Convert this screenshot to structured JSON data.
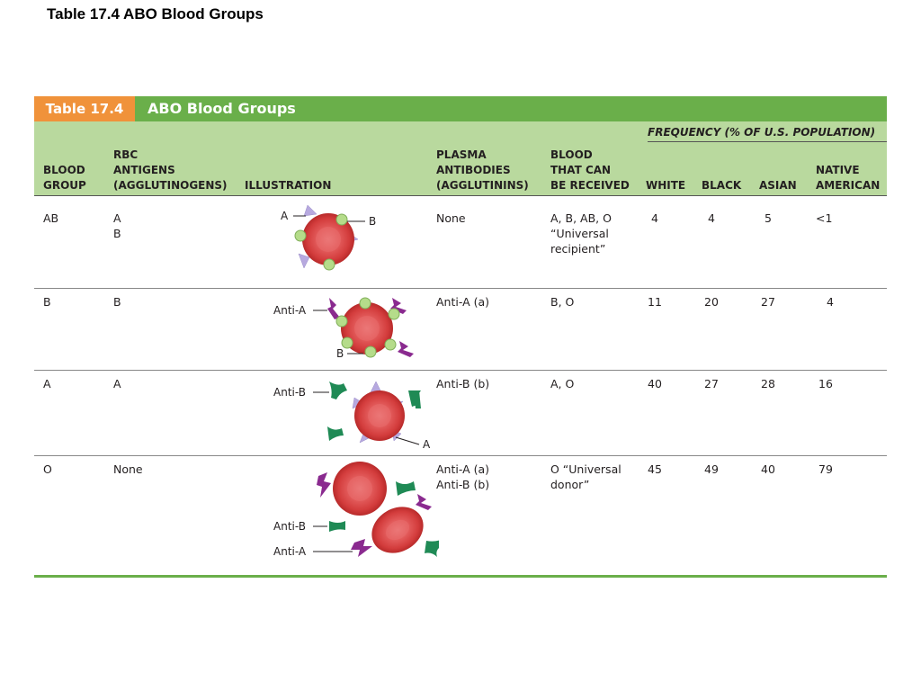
{
  "slide_title": "Table 17.4  ABO Blood Groups",
  "table": {
    "tag": "Table 17.4",
    "title": "ABO Blood Groups",
    "frequency_heading": "FREQUENCY (% OF U.S. POPULATION)",
    "headers": {
      "blood_group": "BLOOD\nGROUP",
      "rbc_antigens": "RBC\nANTIGENS\n(AGGLUTINOGENS)",
      "illustration": "ILLUSTRATION",
      "plasma_antibodies": "PLASMA\nANTIBODIES\n(AGGLUTININS)",
      "blood_received": "BLOOD\nTHAT CAN\nBE RECEIVED",
      "white": "WHITE",
      "black": "BLACK",
      "asian": "ASIAN",
      "native_american": "NATIVE\nAMERICAN"
    },
    "rows": [
      {
        "blood_group": "AB",
        "antigens": "A\nB",
        "antibodies": "None",
        "received": "A, B, AB, O\n“Universal\nrecipient”",
        "white": "4",
        "black": "4",
        "asian": "5",
        "native_american": "<1",
        "labels": {
          "a": "A",
          "b": "B"
        }
      },
      {
        "blood_group": "B",
        "antigens": "B",
        "antibodies": "Anti-A (a)",
        "received": "B, O",
        "white": "11",
        "black": "20",
        "asian": "27",
        "native_american": "4",
        "labels": {
          "anti_a": "Anti-A",
          "b": "B"
        }
      },
      {
        "blood_group": "A",
        "antigens": "A",
        "antibodies": "Anti-B (b)",
        "received": "A, O",
        "white": "40",
        "black": "27",
        "asian": "28",
        "native_american": "16",
        "labels": {
          "anti_b": "Anti-B",
          "a": "A"
        }
      },
      {
        "blood_group": "O",
        "antigens": "None",
        "antibodies": "Anti-A (a)\nAnti-B (b)",
        "received": "O “Universal\ndonor”",
        "white": "45",
        "black": "49",
        "asian": "40",
        "native_american": "79",
        "labels": {
          "anti_b": "Anti-B",
          "anti_a": "Anti-A"
        }
      }
    ]
  },
  "colors": {
    "title_green": "#6aaf4a",
    "header_green": "#b9d99e",
    "tag_orange": "#f0923a",
    "cell_red": "#d94545",
    "antigen_a_purple": "#b7a9df",
    "antigen_b_green": "#b5dc8a",
    "antibody_anti_a": "#8a2a8f",
    "antibody_anti_b": "#1f8a55"
  }
}
